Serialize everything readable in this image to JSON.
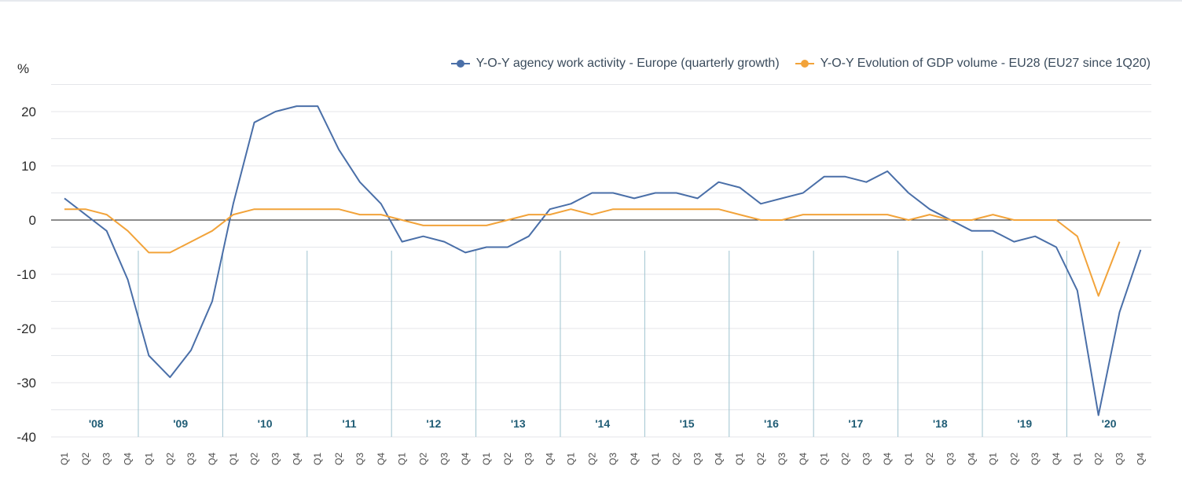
{
  "chart_data": {
    "type": "line",
    "unit_label": "%",
    "y_ticks": [
      20,
      10,
      0,
      -10,
      -20,
      -30,
      -40
    ],
    "ylim": [
      -40,
      25
    ],
    "grid": true,
    "legend_position": "top-right",
    "years": [
      "'08",
      "'09",
      "'10",
      "'11",
      "'12",
      "'13",
      "'14",
      "'15",
      "'16",
      "'17",
      "'18",
      "'19",
      "'20"
    ],
    "quarters": [
      "Q1",
      "Q2",
      "Q3",
      "Q4"
    ],
    "series": [
      {
        "name": "Y-O-Y agency work activity - Europe (quarterly growth)",
        "color": "#4a6fa8",
        "values": [
          4,
          1,
          -2,
          -11,
          -25,
          -29,
          -24,
          -15,
          3,
          18,
          20,
          21,
          21,
          13,
          7,
          3,
          -4,
          -3,
          -4,
          -6,
          -5,
          -5,
          -3,
          2,
          3,
          5,
          5,
          4,
          5,
          5,
          4,
          7,
          6,
          3,
          4,
          5,
          8,
          8,
          7,
          9,
          5,
          2,
          0,
          -2,
          -2,
          -4,
          -3,
          -5,
          -13,
          -36,
          -17,
          -5.5
        ]
      },
      {
        "name": "Y-O-Y Evolution of GDP volume - EU28 (EU27 since 1Q20)",
        "color": "#f2a33a",
        "values": [
          2,
          2,
          1,
          -2,
          -6,
          -6,
          -4,
          -2,
          1,
          2,
          2,
          2,
          2,
          2,
          1,
          1,
          0,
          -1,
          -1,
          -1,
          -1,
          0,
          1,
          1,
          2,
          1,
          2,
          2,
          2,
          2,
          2,
          2,
          1,
          0,
          0,
          1,
          1,
          1,
          1,
          1,
          0,
          1,
          0,
          0,
          1,
          0,
          0,
          0,
          -3,
          -14,
          -4,
          null
        ]
      }
    ]
  }
}
